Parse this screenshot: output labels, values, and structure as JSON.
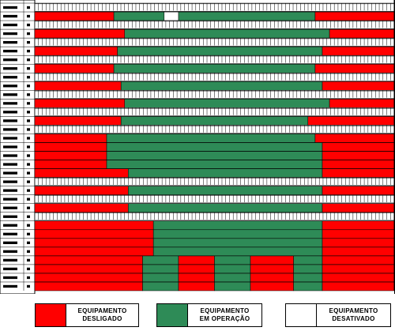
{
  "colors": {
    "off": "#ff0000",
    "on": "#2e8b57",
    "inactive": "#ffffff",
    "grid": "#000000",
    "row_bg": "#c8c8c8"
  },
  "legend": [
    {
      "key": "off",
      "line1": "EQUIPAMENTO",
      "line2": "DESLIGADO"
    },
    {
      "key": "on",
      "line1": "EQUIPAMENTO",
      "line2": "EM OPERAÇÃO"
    },
    {
      "key": "inactive",
      "line1": "EQUIPAMENTO",
      "line2": "DESATIVADO"
    }
  ],
  "schedule": {
    "row_count": 33,
    "rows": [
      {
        "type": "ticks",
        "segments": [
          [
            "inactive",
            0,
            1
          ]
        ]
      },
      {
        "type": "bar",
        "segments": [
          [
            "off",
            0,
            0.22
          ],
          [
            "on",
            0.22,
            0.36
          ],
          [
            "inactive",
            0.36,
            0.4
          ],
          [
            "on",
            0.4,
            0.78
          ],
          [
            "off",
            0.78,
            1
          ]
        ]
      },
      {
        "type": "ticks",
        "segments": [
          [
            "inactive",
            0,
            1
          ]
        ]
      },
      {
        "type": "bar",
        "segments": [
          [
            "off",
            0,
            0.25
          ],
          [
            "on",
            0.25,
            0.82
          ],
          [
            "off",
            0.82,
            1
          ]
        ]
      },
      {
        "type": "ticks",
        "segments": [
          [
            "inactive",
            0,
            1
          ]
        ]
      },
      {
        "type": "bar",
        "segments": [
          [
            "off",
            0,
            0.23
          ],
          [
            "on",
            0.23,
            0.8
          ],
          [
            "off",
            0.8,
            1
          ]
        ]
      },
      {
        "type": "ticks",
        "segments": [
          [
            "inactive",
            0,
            1
          ]
        ]
      },
      {
        "type": "bar",
        "segments": [
          [
            "off",
            0,
            0.22
          ],
          [
            "on",
            0.22,
            0.78
          ],
          [
            "off",
            0.78,
            1
          ]
        ]
      },
      {
        "type": "ticks",
        "segments": [
          [
            "inactive",
            0,
            1
          ]
        ]
      },
      {
        "type": "bar",
        "segments": [
          [
            "off",
            0,
            0.24
          ],
          [
            "on",
            0.24,
            0.8
          ],
          [
            "off",
            0.8,
            1
          ]
        ]
      },
      {
        "type": "ticks",
        "segments": [
          [
            "inactive",
            0,
            1
          ]
        ]
      },
      {
        "type": "bar",
        "segments": [
          [
            "off",
            0,
            0.25
          ],
          [
            "on",
            0.25,
            0.82
          ],
          [
            "off",
            0.82,
            1
          ]
        ]
      },
      {
        "type": "ticks",
        "segments": [
          [
            "inactive",
            0,
            1
          ]
        ]
      },
      {
        "type": "bar",
        "segments": [
          [
            "off",
            0,
            0.24
          ],
          [
            "on",
            0.24,
            0.76
          ],
          [
            "off",
            0.76,
            1
          ]
        ]
      },
      {
        "type": "ticks",
        "segments": [
          [
            "inactive",
            0,
            1
          ]
        ]
      },
      {
        "type": "block",
        "segments": [
          [
            "off",
            0,
            0.2
          ],
          [
            "on",
            0.2,
            0.78
          ],
          [
            "off",
            0.78,
            1
          ]
        ]
      },
      {
        "type": "block",
        "segments": [
          [
            "off",
            0,
            0.2
          ],
          [
            "on",
            0.2,
            0.8
          ],
          [
            "off",
            0.8,
            1
          ]
        ]
      },
      {
        "type": "block",
        "segments": [
          [
            "off",
            0,
            0.2
          ],
          [
            "on",
            0.2,
            0.8
          ],
          [
            "off",
            0.8,
            1
          ]
        ]
      },
      {
        "type": "block",
        "segments": [
          [
            "off",
            0,
            0.2
          ],
          [
            "on",
            0.2,
            0.8
          ],
          [
            "off",
            0.8,
            1
          ]
        ]
      },
      {
        "type": "bar",
        "segments": [
          [
            "off",
            0,
            0.26
          ],
          [
            "on",
            0.26,
            0.8
          ],
          [
            "off",
            0.8,
            1
          ]
        ]
      },
      {
        "type": "ticks",
        "segments": [
          [
            "inactive",
            0,
            1
          ]
        ]
      },
      {
        "type": "bar",
        "segments": [
          [
            "off",
            0,
            0.26
          ],
          [
            "on",
            0.26,
            0.8
          ],
          [
            "off",
            0.8,
            1
          ]
        ]
      },
      {
        "type": "ticks",
        "segments": [
          [
            "inactive",
            0,
            1
          ]
        ]
      },
      {
        "type": "bar",
        "segments": [
          [
            "off",
            0,
            0.26
          ],
          [
            "on",
            0.26,
            0.8
          ],
          [
            "off",
            0.8,
            1
          ]
        ]
      },
      {
        "type": "ticks",
        "segments": [
          [
            "inactive",
            0,
            1
          ]
        ]
      },
      {
        "type": "block",
        "segments": [
          [
            "off",
            0,
            0.33
          ],
          [
            "on",
            0.33,
            0.8
          ],
          [
            "off",
            0.8,
            1
          ]
        ]
      },
      {
        "type": "block",
        "segments": [
          [
            "off",
            0,
            0.33
          ],
          [
            "on",
            0.33,
            0.8
          ],
          [
            "off",
            0.8,
            1
          ]
        ]
      },
      {
        "type": "block",
        "segments": [
          [
            "off",
            0,
            0.33
          ],
          [
            "on",
            0.33,
            0.8
          ],
          [
            "off",
            0.8,
            1
          ]
        ]
      },
      {
        "type": "block",
        "segments": [
          [
            "off",
            0,
            0.33
          ],
          [
            "on",
            0.33,
            0.8
          ],
          [
            "off",
            0.8,
            1
          ]
        ]
      },
      {
        "type": "block",
        "segments": [
          [
            "off",
            0,
            0.3
          ],
          [
            "on",
            0.3,
            0.4
          ],
          [
            "off",
            0.4,
            0.5
          ],
          [
            "on",
            0.5,
            0.6
          ],
          [
            "off",
            0.6,
            0.72
          ],
          [
            "on",
            0.72,
            0.8
          ],
          [
            "off",
            0.8,
            1
          ]
        ]
      },
      {
        "type": "block",
        "segments": [
          [
            "off",
            0,
            0.3
          ],
          [
            "on",
            0.3,
            0.4
          ],
          [
            "off",
            0.4,
            0.5
          ],
          [
            "on",
            0.5,
            0.6
          ],
          [
            "off",
            0.6,
            0.72
          ],
          [
            "on",
            0.72,
            0.8
          ],
          [
            "off",
            0.8,
            1
          ]
        ]
      },
      {
        "type": "block",
        "segments": [
          [
            "off",
            0,
            0.3
          ],
          [
            "on",
            0.3,
            0.4
          ],
          [
            "off",
            0.4,
            0.5
          ],
          [
            "on",
            0.5,
            0.6
          ],
          [
            "off",
            0.6,
            0.72
          ],
          [
            "on",
            0.72,
            0.8
          ],
          [
            "off",
            0.8,
            1
          ]
        ]
      },
      {
        "type": "block",
        "segments": [
          [
            "off",
            0,
            0.3
          ],
          [
            "on",
            0.3,
            0.4
          ],
          [
            "off",
            0.4,
            0.5
          ],
          [
            "on",
            0.5,
            0.6
          ],
          [
            "off",
            0.6,
            0.72
          ],
          [
            "on",
            0.72,
            0.8
          ],
          [
            "off",
            0.8,
            1
          ]
        ]
      }
    ]
  }
}
